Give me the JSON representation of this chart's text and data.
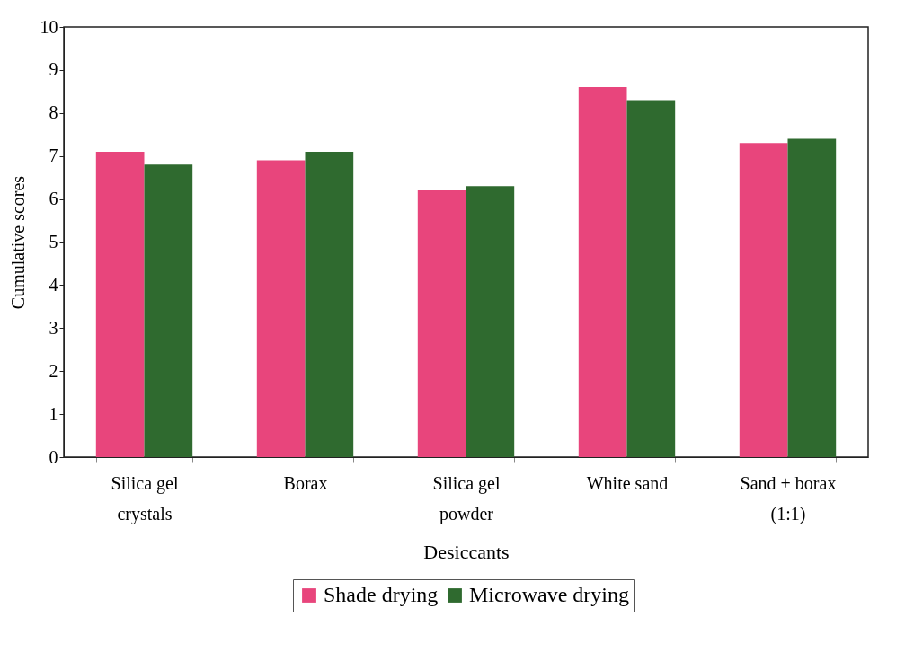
{
  "chart_data": {
    "type": "bar",
    "xlabel": "Desiccants",
    "ylabel": "Cumulative scores",
    "categories": [
      "Silica gel\ncrystals",
      "Borax",
      "Silica gel\npowder",
      "White sand",
      "Sand + borax\n(1:1)"
    ],
    "series": [
      {
        "name": "Shade drying",
        "color": "#e8457c",
        "values": [
          7.1,
          6.9,
          6.2,
          8.6,
          7.3
        ]
      },
      {
        "name": "Microwave drying",
        "color": "#2f6a2f",
        "values": [
          6.8,
          7.1,
          6.3,
          8.3,
          7.4
        ]
      }
    ],
    "ylim": [
      0,
      10
    ],
    "yticks": [
      0,
      1,
      2,
      3,
      4,
      5,
      6,
      7,
      8,
      9,
      10
    ],
    "grid": false,
    "legend": "bottom"
  }
}
